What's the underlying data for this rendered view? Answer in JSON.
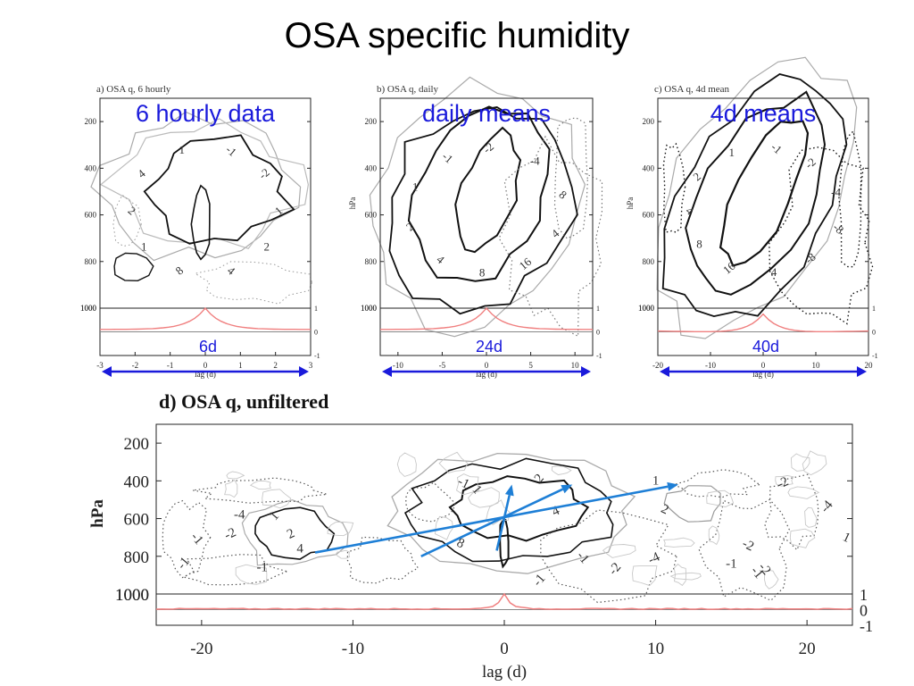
{
  "slide": {
    "title": "OSA specific humidity"
  },
  "chart_data": [
    {
      "type": "contour",
      "panel_label": "a) OSA q, 6 hourly",
      "annotation": "6 hourly data",
      "xlabel": "lag (d)",
      "ylabel": "",
      "xlim": [
        -3,
        3
      ],
      "xticks": [
        -3,
        -2,
        -1,
        0,
        1,
        2,
        3
      ],
      "ylim": [
        100,
        1000
      ],
      "yticks": [
        200,
        400,
        600,
        800,
        1000
      ],
      "y_reversed": true,
      "contour_labels": [
        "1",
        "2",
        "4",
        "8",
        "1",
        "2",
        "4",
        "1",
        "-1",
        "-2"
      ],
      "bottom_strip": {
        "ylim": [
          -1,
          1
        ],
        "yticks": [
          "1",
          "0",
          "-1"
        ]
      },
      "arrow_annotation": "6d",
      "arrow_range": [
        -3,
        3
      ]
    },
    {
      "type": "contour",
      "panel_label": "b) OSA q, daily",
      "annotation": "daily means",
      "xlabel": "lag (d)",
      "ylabel": "hPa",
      "xlim": [
        -12,
        12
      ],
      "xticks": [
        -10,
        -5,
        0,
        5,
        10
      ],
      "ylim": [
        100,
        1000
      ],
      "yticks": [
        200,
        400,
        600,
        800,
        1000
      ],
      "y_reversed": true,
      "contour_labels": [
        "16",
        "8",
        "4",
        "2",
        "1",
        "-1",
        "-2",
        "-4",
        "8",
        "4"
      ],
      "bottom_strip": {
        "ylim": [
          -1,
          1
        ],
        "yticks": [
          "1",
          "0",
          "-1"
        ]
      },
      "arrow_annotation": "24d",
      "arrow_range": [
        -12,
        12
      ]
    },
    {
      "type": "contour",
      "panel_label": "c) OSA q, 4d mean",
      "annotation": "4d means",
      "xlabel": "lag (d)",
      "ylabel": "hPa",
      "xlim": [
        -20,
        20
      ],
      "xticks": [
        -20,
        -10,
        0,
        10,
        20
      ],
      "ylim": [
        100,
        1000
      ],
      "yticks": [
        200,
        400,
        600,
        800,
        1000
      ],
      "y_reversed": true,
      "contour_labels": [
        "16",
        "8",
        "4",
        "2",
        "1",
        "-1",
        "-2",
        "-4",
        "-8",
        "-8",
        "4"
      ],
      "bottom_strip": {
        "ylim": [
          -1,
          1
        ],
        "yticks": [
          "1",
          "0",
          "-1"
        ]
      },
      "arrow_annotation": "40d",
      "arrow_range": [
        -20,
        20
      ]
    },
    {
      "type": "contour",
      "panel_label": "d) OSA q, unfiltered",
      "xlabel": "lag (d)",
      "ylabel": "hPa",
      "xlim": [
        -23,
        23
      ],
      "xticks": [
        -20,
        -10,
        0,
        10,
        20
      ],
      "ylim": [
        100,
        1000
      ],
      "yticks": [
        200,
        400,
        600,
        800,
        1000
      ],
      "y_reversed": true,
      "contour_labels": [
        "1",
        "2",
        "4",
        "8",
        "1",
        "2",
        "4",
        "1",
        "2",
        "-1",
        "-1",
        "-2",
        "-4",
        "-1",
        "-1",
        "-2",
        "-4",
        "-1",
        "-2",
        "-1",
        "-4",
        "-2",
        "-1",
        "1",
        "-2",
        "-1"
      ],
      "bottom_strip": {
        "ylim": [
          -1,
          1
        ],
        "yticks": [
          "1",
          "0",
          "-1"
        ]
      },
      "arrows": [
        {
          "from": [
            -12.5,
            780
          ],
          "to": [
            11.5,
            420
          ]
        },
        {
          "from": [
            -5.5,
            800
          ],
          "to": [
            4.5,
            420
          ]
        },
        {
          "from": [
            -0.5,
            770
          ],
          "to": [
            0.5,
            420
          ]
        }
      ]
    }
  ]
}
